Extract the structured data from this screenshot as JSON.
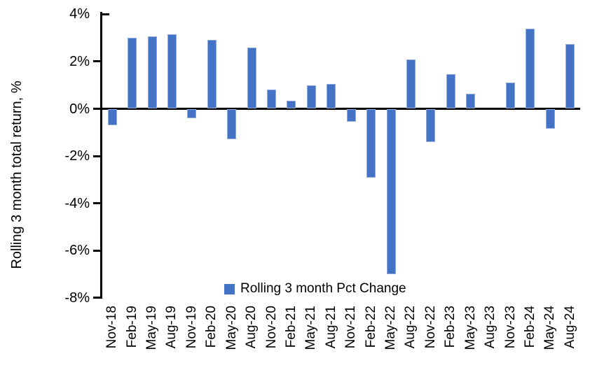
{
  "chart_data": {
    "type": "bar",
    "title": "",
    "xlabel": "",
    "ylabel": "Rolling 3 month total return, %",
    "ylim": [
      -8,
      4
    ],
    "ytick_values": [
      4,
      2,
      0,
      -2,
      -4,
      -6,
      -8
    ],
    "ytick_labels": [
      "4%",
      "2%",
      "0%",
      "-2%",
      "-4%",
      "-6%",
      "-8%"
    ],
    "grid": false,
    "legend_position": "bottom-center",
    "legend": [
      "Rolling 3 month Pct Change"
    ],
    "bar_color": "#4472C4",
    "bar_border_color": "#8FAADC",
    "axis_color": "#000000",
    "categories": [
      "Nov-18",
      "Feb-19",
      "May-19",
      "Aug-19",
      "Nov-19",
      "Feb-20",
      "May-20",
      "Aug-20",
      "Nov-20",
      "Feb-21",
      "May-21",
      "Aug-21",
      "Nov-21",
      "Feb-22",
      "May-22",
      "Aug-22",
      "Nov-22",
      "Feb-23",
      "May-23",
      "Aug-23",
      "Nov-23",
      "Feb-24",
      "May-24",
      "Aug-24"
    ],
    "values": [
      -0.7,
      3.0,
      3.05,
      3.15,
      -0.4,
      2.9,
      -1.3,
      2.6,
      0.8,
      0.35,
      1.0,
      1.05,
      -0.55,
      -2.9,
      -7.0,
      2.1,
      -1.4,
      1.45,
      0.65,
      0.0,
      1.1,
      3.4,
      -0.85,
      2.75
    ]
  }
}
